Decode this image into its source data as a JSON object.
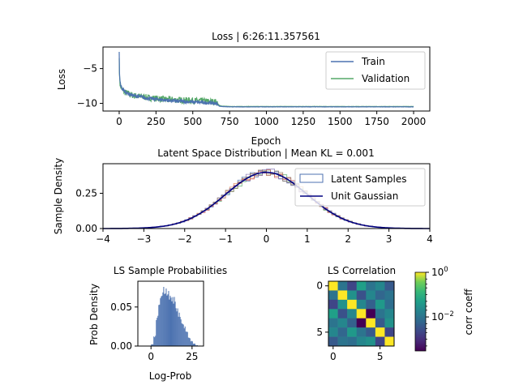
{
  "chart_data": [
    {
      "type": "line",
      "title": "Loss | 6:26:11.357561",
      "xlabel": "Epoch",
      "ylabel": "Loss",
      "xlim": [
        -110,
        2110
      ],
      "ylim": [
        -11.1,
        -1.9
      ],
      "xticks": [
        0,
        250,
        500,
        750,
        1000,
        1250,
        1500,
        1750,
        2000
      ],
      "yticks": [
        -10,
        -5
      ],
      "ytick_labels": [
        "−10",
        "−5"
      ],
      "legend_position": "top-right",
      "series": [
        {
          "name": "Train",
          "color": "#4c72b0",
          "x": [
            0,
            2,
            5,
            10,
            20,
            40,
            60,
            100,
            150,
            200,
            300,
            400,
            500,
            600,
            660,
            680,
            700,
            750,
            1000,
            1250,
            1500,
            1750,
            2000
          ],
          "y": [
            -2.6,
            -5.5,
            -6.8,
            -7.4,
            -7.9,
            -8.3,
            -8.6,
            -8.9,
            -9.1,
            -9.3,
            -9.5,
            -9.7,
            -9.8,
            -9.9,
            -10.0,
            -10.4,
            -10.45,
            -10.5,
            -10.5,
            -10.5,
            -10.5,
            -10.5,
            -10.5
          ]
        },
        {
          "name": "Validation",
          "color": "#55a868",
          "x": [
            0,
            2,
            5,
            10,
            20,
            40,
            60,
            100,
            150,
            200,
            300,
            400,
            500,
            600,
            660,
            680,
            700,
            750,
            1000,
            1250,
            1500,
            1750,
            2000
          ],
          "y": [
            -3.5,
            -5.8,
            -7.0,
            -7.5,
            -8.0,
            -8.4,
            -8.6,
            -8.9,
            -9.0,
            -9.2,
            -9.4,
            -9.5,
            -9.6,
            -9.7,
            -9.8,
            -10.3,
            -10.4,
            -10.45,
            -10.45,
            -10.45,
            -10.45,
            -10.45,
            -10.45
          ]
        }
      ]
    },
    {
      "type": "area",
      "title": "Latent Space Distribution | Mean KL = 0.001",
      "xlabel": "",
      "ylabel": "Sample Density",
      "xlim": [
        -4,
        4
      ],
      "ylim": [
        0,
        0.46
      ],
      "xticks": [
        -4,
        -3,
        -2,
        -1,
        0,
        1,
        2,
        3,
        4
      ],
      "xtick_labels": [
        "−4",
        "−3",
        "−2",
        "−1",
        "0",
        "1",
        "2",
        "3",
        "4"
      ],
      "yticks": [
        0.0,
        0.25
      ],
      "ytick_labels": [
        "0.00",
        "0.25"
      ],
      "legend_position": "top-right",
      "legend": [
        {
          "name": "Latent Samples",
          "color": "#4c72b0",
          "kind": "histogram"
        },
        {
          "name": "Unit Gaussian",
          "color": "#000080",
          "kind": "line"
        }
      ],
      "histogram_dims": 6,
      "histogram_colors": [
        "#4c72b0",
        "#dd8452",
        "#55a868",
        "#c44e52",
        "#8172b3",
        "#937860"
      ],
      "gaussian_mean": 0,
      "gaussian_std": 1
    },
    {
      "type": "bar",
      "title": "LS Sample Probabilities",
      "xlabel": "Log-Prob",
      "ylabel": "Prob Density",
      "xlim": [
        -8,
        32
      ],
      "ylim": [
        0,
        0.083
      ],
      "xticks": [
        0,
        25
      ],
      "yticks": [
        0.0,
        0.05
      ],
      "ytick_labels": [
        "0.00",
        "0.05"
      ],
      "color": "#4c72b0",
      "bin_edges": [
        0,
        1.5,
        3,
        4.5,
        6,
        7.5,
        9,
        10.5,
        12,
        13.5,
        15,
        16.5,
        18,
        19.5,
        21,
        22.5,
        24,
        25.5,
        27,
        28.5,
        30
      ],
      "values": [
        0.002,
        0.012,
        0.035,
        0.06,
        0.066,
        0.07,
        0.072,
        0.068,
        0.063,
        0.056,
        0.048,
        0.04,
        0.032,
        0.025,
        0.018,
        0.011,
        0.006,
        0.003,
        0.001,
        0.0005
      ]
    },
    {
      "type": "heatmap",
      "title": "LS Correlation",
      "xticks": [
        0,
        5
      ],
      "yticks": [
        0,
        5
      ],
      "colorbar_label": "corr coeff",
      "colorbar_scale": "log",
      "colorbar_ticks": [
        "10",
        "10"
      ],
      "colorbar_tick_exponents": [
        "0",
        "−2"
      ],
      "colorbar_range": [
        0.0003,
        1
      ],
      "colormap": "viridis",
      "matrix": [
        [
          1.0,
          0.01,
          0.002,
          0.05,
          0.01,
          0.02,
          0.004
        ],
        [
          0.01,
          1.0,
          0.03,
          0.003,
          0.02,
          0.006,
          0.01
        ],
        [
          0.002,
          0.03,
          1.0,
          0.02,
          0.005,
          0.04,
          0.008
        ],
        [
          0.05,
          0.003,
          0.02,
          1.0,
          0.0003,
          0.01,
          0.02
        ],
        [
          0.01,
          0.02,
          0.005,
          0.0003,
          1.0,
          0.004,
          0.03
        ],
        [
          0.02,
          0.006,
          0.04,
          0.01,
          0.004,
          1.0,
          0.002
        ],
        [
          0.004,
          0.01,
          0.008,
          0.02,
          0.03,
          0.002,
          1.0
        ]
      ]
    }
  ]
}
